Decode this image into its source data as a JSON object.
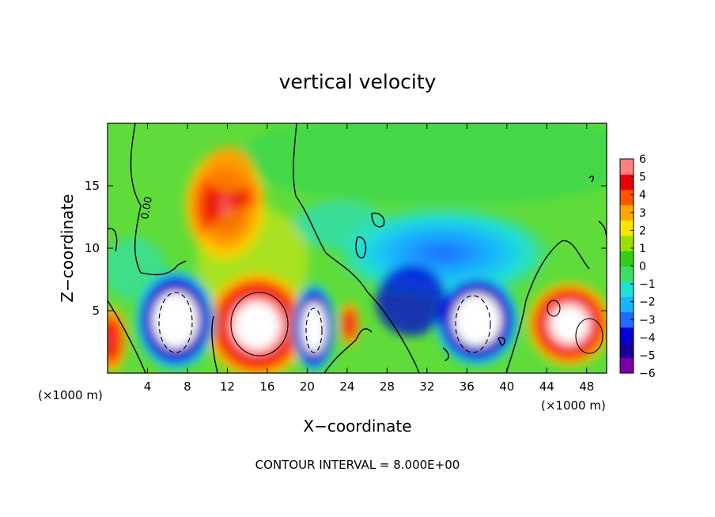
{
  "chart_data": {
    "type": "heatmap",
    "title": "vertical velocity",
    "xlabel": "X−coordinate",
    "ylabel": "Z−coordinate",
    "x_unit_left": "(×1000 m)",
    "x_unit_right": "(×1000 m)",
    "footer": "CONTOUR INTERVAL = 8.000E+00",
    "contour_label": "0.00",
    "xlim": [
      0,
      50
    ],
    "ylim": [
      0,
      20
    ],
    "x_ticks": [
      4,
      8,
      12,
      16,
      20,
      24,
      28,
      32,
      36,
      40,
      44,
      48
    ],
    "y_ticks": [
      5,
      10,
      15
    ],
    "colorbar": {
      "min": -6,
      "max": 6,
      "ticks": [
        6,
        5,
        4,
        3,
        2,
        1,
        0,
        -1,
        -2,
        -3,
        -4,
        -5,
        -6
      ],
      "colors": [
        "#7a00a8",
        "#1a0099",
        "#0000d6",
        "#1f6cff",
        "#18b4ff",
        "#21e0d6",
        "#3de05e",
        "#33cc1a",
        "#9be000",
        "#ffe600",
        "#ffa800",
        "#ff5500",
        "#e80000",
        "#ff8080"
      ]
    },
    "features": [
      {
        "kind": "updraft",
        "x": 14,
        "z": 3.9,
        "peak": 6
      },
      {
        "kind": "updraft",
        "x": 12.5,
        "z": 12,
        "peak": 5
      },
      {
        "kind": "updraft",
        "x": 46.5,
        "z": 4.0,
        "peak": 6
      },
      {
        "kind": "updraft",
        "x": 1,
        "z": 3.5,
        "peak": 5
      },
      {
        "kind": "downdraft",
        "x": 7,
        "z": 4.5,
        "peak": -6
      },
      {
        "kind": "downdraft",
        "x": 20.5,
        "z": 3.0,
        "peak": -6
      },
      {
        "kind": "downdraft",
        "x": 36.5,
        "z": 4.2,
        "peak": -6
      },
      {
        "kind": "downdraft",
        "x": 32,
        "z": 7,
        "peak": -3
      }
    ]
  }
}
